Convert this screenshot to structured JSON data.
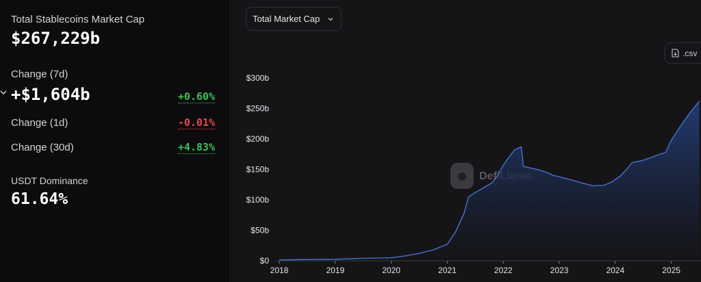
{
  "stats": {
    "total_label": "Total Stablecoins Market Cap",
    "total_value": "$267,229b",
    "change_7d_label": "Change (7d)",
    "change_7d_value": "+$1,604b",
    "change_7d_pct": "+0.60%",
    "change_1d_label": "Change (1d)",
    "change_1d_pct": "-0.01%",
    "change_30d_label": "Change (30d)",
    "change_30d_pct": "+4.83%",
    "dominance_label": "USDT Dominance",
    "dominance_value": "61.64%"
  },
  "controls": {
    "metric_selected": "Total Market Cap",
    "csv_label": ".csv"
  },
  "watermark": "DefiLlama",
  "colors": {
    "positive": "#3fbf55",
    "negative": "#e5484d",
    "line": "#4f79d9",
    "area_top": "#233c78",
    "area_bottom": "#151518"
  },
  "chart_data": {
    "type": "area",
    "title": "",
    "xlabel": "",
    "ylabel": "",
    "ylim": [
      0,
      300
    ],
    "y_ticks": [
      "$0",
      "$50b",
      "$100b",
      "$150b",
      "$200b",
      "$250b",
      "$300b"
    ],
    "x_ticks": [
      "2018",
      "2019",
      "2020",
      "2021",
      "2022",
      "2023",
      "2024",
      "2025"
    ],
    "grid": false,
    "series": [
      {
        "x": [
          2018.0,
          2018.5,
          2019.0,
          2019.5,
          2020.0,
          2020.25,
          2020.5,
          2020.75,
          2021.0,
          2021.15,
          2021.3,
          2021.38,
          2021.5,
          2021.65,
          2021.8,
          2021.9,
          2022.0,
          2022.1,
          2022.2,
          2022.32,
          2022.36,
          2022.45,
          2022.6,
          2022.75,
          2022.9,
          2023.0,
          2023.2,
          2023.4,
          2023.6,
          2023.8,
          2023.95,
          2024.1,
          2024.2,
          2024.3,
          2024.5,
          2024.65,
          2024.8,
          2024.9,
          2025.0,
          2025.1,
          2025.2,
          2025.35,
          2025.5
        ],
        "y": [
          1.2,
          2,
          2.5,
          4,
          5,
          8,
          12,
          18,
          27,
          48,
          78,
          105,
          112,
          120,
          128,
          140,
          157,
          170,
          182,
          187,
          155,
          153,
          150,
          146,
          140,
          138,
          133,
          128,
          123,
          124,
          130,
          140,
          150,
          161,
          165,
          170,
          175,
          178,
          198,
          212,
          226,
          245,
          262
        ]
      }
    ]
  }
}
